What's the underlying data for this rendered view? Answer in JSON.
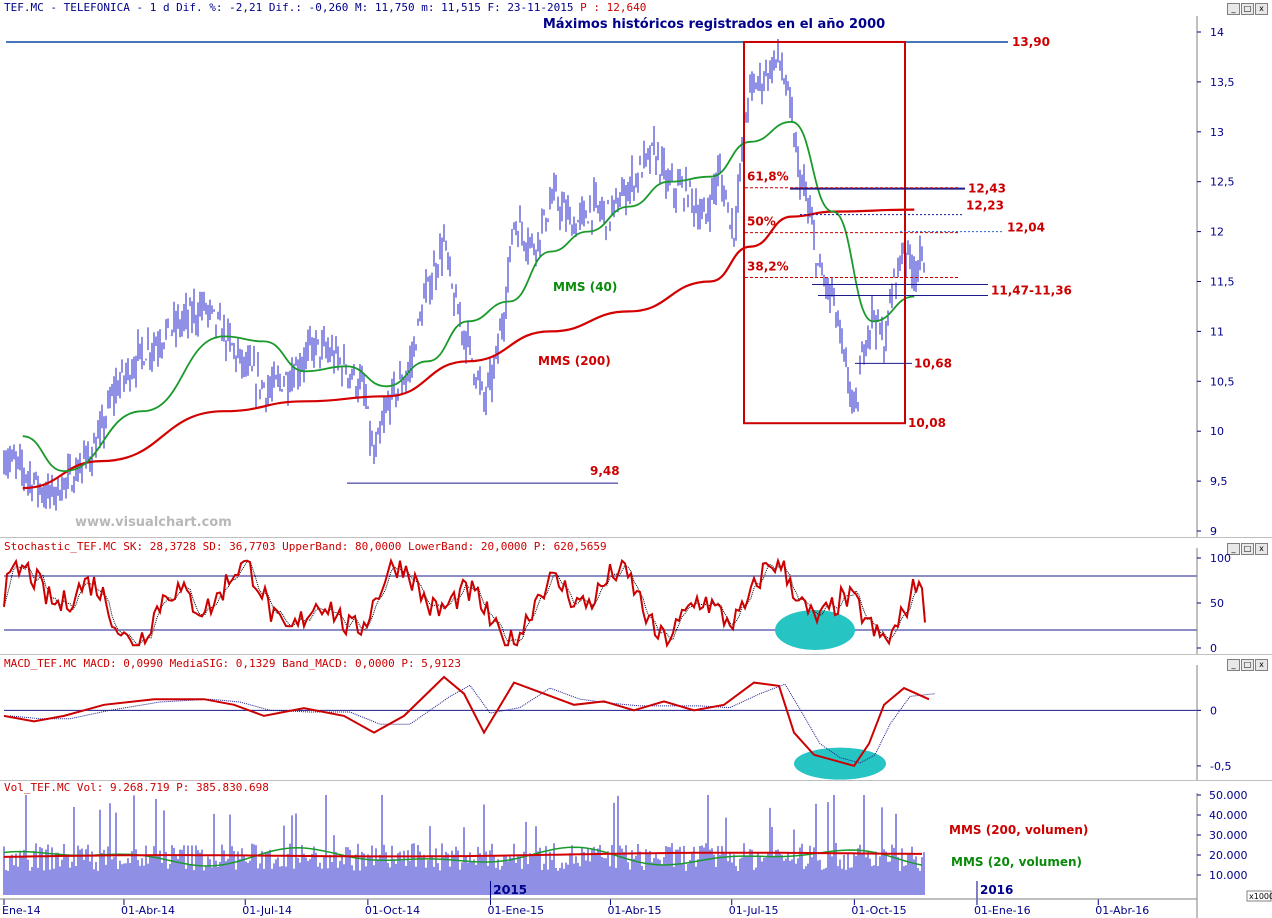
{
  "header": {
    "main_prefix": "TEF.MC - TELEFONICA -  1 d Dif. %: -2,21 Dif.: -0,260 M: 11,750 m: 11,515 F: 23-11-2015 ",
    "main_p": "P : 12,640",
    "stoch": "Stochastic_TEF.MC SK: 28,3728 SD: 36,7703 UpperBand: 80,0000 LowerBand: 20,0000 P: 620,5659",
    "macd": "MACD_TEF.MC MACD: 0,0990 MediaSIG: 0,1329 Band_MACD: 0,0000 P: 5,9123",
    "vol": "Vol_TEF.MC Vol: 9.268.719 P: 385.830.698"
  },
  "window_buttons": {
    "minimize": "_",
    "restore": "□",
    "close": "x"
  },
  "watermark": "www.visualchart.com",
  "colors": {
    "price_bars": "#1f1fcc",
    "mms40": "#1a9a2a",
    "mms200": "#d40000",
    "levels": "#cc0000",
    "axis": "#00008b",
    "highlight": "#27c4c4"
  },
  "chart_data": [
    {
      "type": "line",
      "title": "Máximos históricos registrados en el año 2000",
      "ylim": [
        9,
        14
      ],
      "y_ticks": [
        "14",
        "13,5",
        "13",
        "12,5",
        "12",
        "11,5",
        "11",
        "10,5",
        "10",
        "9,5",
        "9"
      ],
      "x_ticks": [
        "Ene-14",
        "01-Abr-14",
        "01-Jul-14",
        "01-Oct-14",
        "01-Ene-15",
        "01-Abr-15",
        "01-Jul-15",
        "01-Oct-15",
        "01-Ene-16",
        "01-Abr-16"
      ],
      "series": [
        {
          "name": "MMS (40)",
          "x": [
            "Ene-14",
            "Feb-14",
            "Abr-14",
            "Jun-14",
            "Jul-14",
            "Ago-14",
            "Sep-14",
            "Oct-14",
            "Nov-14",
            "Dic-14",
            "Ene-15",
            "Feb-15",
            "Mar-15",
            "Abr-15",
            "May-15",
            "Jun-15",
            "Jul-15",
            "Ago-15",
            "Sep-15",
            "Oct-15",
            "Nov-15"
          ],
          "values": [
            9.95,
            9.6,
            10.2,
            10.95,
            10.9,
            10.6,
            10.65,
            10.45,
            10.7,
            11.1,
            11.3,
            11.8,
            12.0,
            12.25,
            12.5,
            12.55,
            12.9,
            13.1,
            12.2,
            11.1,
            11.35
          ]
        },
        {
          "name": "MMS (200)",
          "x": [
            "Ene-14",
            "Mar-14",
            "Jun-14",
            "Ago-14",
            "Oct-14",
            "Dic-14",
            "Feb-15",
            "Abr-15",
            "Jun-15",
            "Jul-15",
            "Ago-15",
            "Sep-15",
            "Nov-15"
          ],
          "values": [
            9.43,
            9.7,
            10.2,
            10.3,
            10.35,
            10.7,
            11.0,
            11.2,
            11.5,
            11.85,
            12.15,
            12.2,
            12.22
          ]
        }
      ],
      "levels": [
        {
          "label": "13,90",
          "value": 13.9
        },
        {
          "label": "12,43",
          "value": 12.43
        },
        {
          "label": "12,23",
          "value": 12.23
        },
        {
          "label": "12,04",
          "value": 12.04
        },
        {
          "label": "11,47-11,36",
          "value": 11.47
        },
        {
          "label": "10,68",
          "value": 10.68
        },
        {
          "label": "10,08",
          "value": 10.08
        },
        {
          "label": "9,48",
          "value": 9.48
        }
      ],
      "fibonacci": [
        {
          "label": "61,8%",
          "value": 12.44
        },
        {
          "label": "50%",
          "value": 11.99
        },
        {
          "label": "38,2%",
          "value": 11.54
        }
      ],
      "annotations": [
        "MMS (40)",
        "MMS (200)"
      ]
    },
    {
      "type": "line",
      "title": "Stochastic_TEF.MC",
      "ylim": [
        0,
        100
      ],
      "y_ticks": [
        "100",
        "50",
        "0"
      ],
      "bands": [
        80,
        20
      ],
      "series": [
        {
          "name": "SK",
          "last": 28.3728
        },
        {
          "name": "SD",
          "last": 36.7703
        }
      ]
    },
    {
      "type": "line",
      "title": "MACD_TEF.MC",
      "ylim": [
        -0.6,
        0.3
      ],
      "y_ticks": [
        "0",
        "-0,5"
      ],
      "series": [
        {
          "name": "MACD",
          "last": 0.099
        },
        {
          "name": "MediaSIG",
          "last": 0.1329
        }
      ]
    },
    {
      "type": "bar",
      "title": "Vol_TEF.MC",
      "y_ticks": [
        "50.000",
        "40.000",
        "30.000",
        "20.000",
        "10.000"
      ],
      "y_unit": "x1000",
      "year_marks": [
        "2015",
        "2016"
      ],
      "annotations": [
        "MMS (200, volumen)",
        "MMS (20, volumen)"
      ],
      "last_volume": "9.268.719"
    }
  ]
}
